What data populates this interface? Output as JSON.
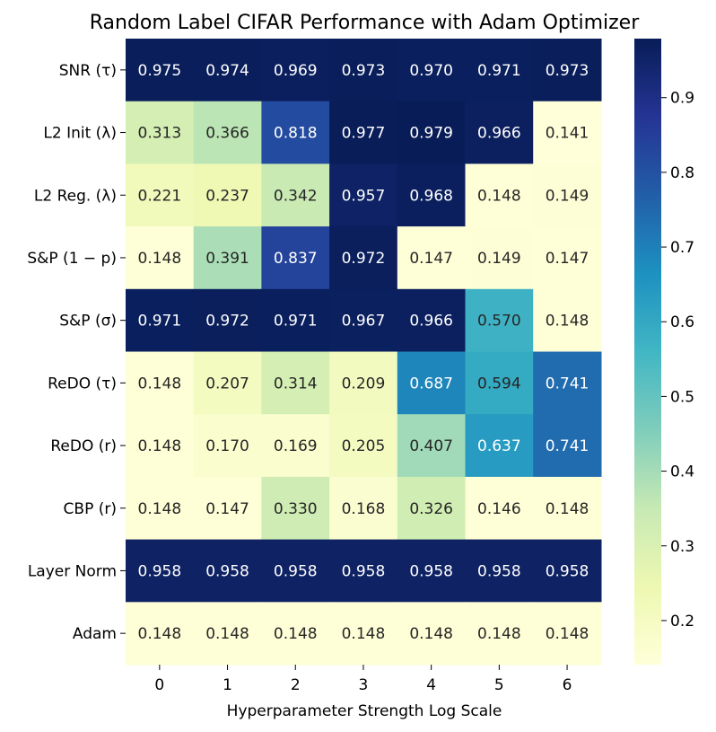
{
  "chart_data": {
    "type": "heatmap",
    "title": "Random Label CIFAR Performance with Adam Optimizer",
    "xlabel": "Hyperparameter Strength Log Scale",
    "ylabel": "",
    "x_categories": [
      "0",
      "1",
      "2",
      "3",
      "4",
      "5",
      "6"
    ],
    "y_categories": [
      "SNR (τ)",
      "L2 Init (λ)",
      "L2 Reg. (λ)",
      "S&P (1 − p)",
      "S&P (σ)",
      "ReDO (τ)",
      "ReDO (r)",
      "CBP (r)",
      "Layer Norm",
      "Adam"
    ],
    "values": [
      [
        0.975,
        0.974,
        0.969,
        0.973,
        0.97,
        0.971,
        0.973
      ],
      [
        0.313,
        0.366,
        0.818,
        0.977,
        0.979,
        0.966,
        0.141
      ],
      [
        0.221,
        0.237,
        0.342,
        0.957,
        0.968,
        0.148,
        0.149
      ],
      [
        0.148,
        0.391,
        0.837,
        0.972,
        0.147,
        0.149,
        0.147
      ],
      [
        0.971,
        0.972,
        0.971,
        0.967,
        0.966,
        0.57,
        0.148
      ],
      [
        0.148,
        0.207,
        0.314,
        0.209,
        0.687,
        0.594,
        0.741
      ],
      [
        0.148,
        0.17,
        0.169,
        0.205,
        0.407,
        0.637,
        0.741
      ],
      [
        0.148,
        0.147,
        0.33,
        0.168,
        0.326,
        0.146,
        0.148
      ],
      [
        0.958,
        0.958,
        0.958,
        0.958,
        0.958,
        0.958,
        0.958
      ],
      [
        0.148,
        0.148,
        0.148,
        0.148,
        0.148,
        0.148,
        0.148
      ]
    ],
    "colorbar": {
      "colormap": "YlGnBu",
      "range": [
        0.141,
        0.979
      ],
      "ticks": [
        0.2,
        0.3,
        0.4,
        0.5,
        0.6,
        0.7,
        0.8,
        0.9
      ],
      "tick_labels": [
        "0.2",
        "0.3",
        "0.4",
        "0.5",
        "0.6",
        "0.7",
        "0.8",
        "0.9"
      ]
    },
    "grid": false,
    "legend": "colorbar right"
  }
}
